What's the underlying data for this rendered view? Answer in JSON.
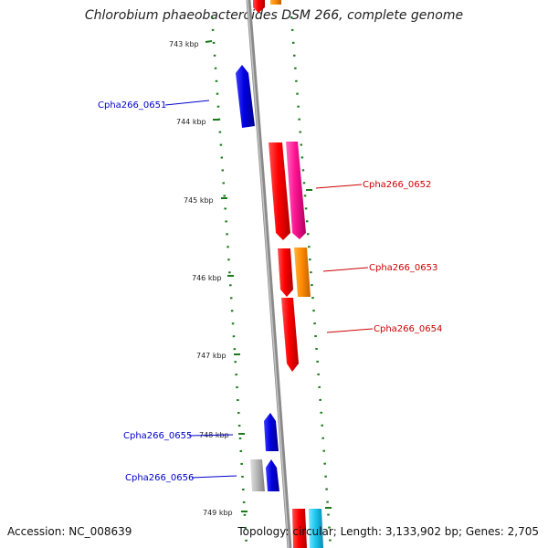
{
  "title": "Chlorobium phaeobacteroides DSM 266, complete genome",
  "accession_text": "Accession: NC_008639",
  "topology_text": "Topology: circular; Length: 3,133,902 bp; Genes: 2,705",
  "kbp_ticks": [
    {
      "label": "743 kbp",
      "pos_kbp": 743
    },
    {
      "label": "744 kbp",
      "pos_kbp": 744
    },
    {
      "label": "745 kbp",
      "pos_kbp": 745
    },
    {
      "label": "746 kbp",
      "pos_kbp": 746
    },
    {
      "label": "747 kbp",
      "pos_kbp": 747
    },
    {
      "label": "748 kbp",
      "pos_kbp": 748
    },
    {
      "label": "749 kbp",
      "pos_kbp": 749
    }
  ],
  "labeled_genes": [
    {
      "name": "Cpha266_0651",
      "strand": "reverse",
      "color": "#0000cc"
    },
    {
      "name": "Cpha266_0652",
      "strand": "forward",
      "color": "#cc0000"
    },
    {
      "name": "Cpha266_0653",
      "strand": "forward",
      "color": "#cc0000"
    },
    {
      "name": "Cpha266_0654",
      "strand": "forward",
      "color": "#cc0000"
    },
    {
      "name": "Cpha266_0655",
      "strand": "reverse",
      "color": "#0000cc"
    },
    {
      "name": "Cpha266_0656",
      "strand": "reverse",
      "color": "#0000cc"
    }
  ],
  "colors": {
    "backbone": "#8a8a8a",
    "ticks": "#1a7a1a",
    "reverse_label": "#0000cc",
    "forward_label": "#cc0000",
    "gene_blue": "#0a10e0",
    "gene_red": "#ff0a0a",
    "gene_pink": "#ff1f9a",
    "gene_orange": "#ff8c00",
    "gene_gray": "#b8b8b8",
    "gene_cyan": "#17c8f0"
  }
}
